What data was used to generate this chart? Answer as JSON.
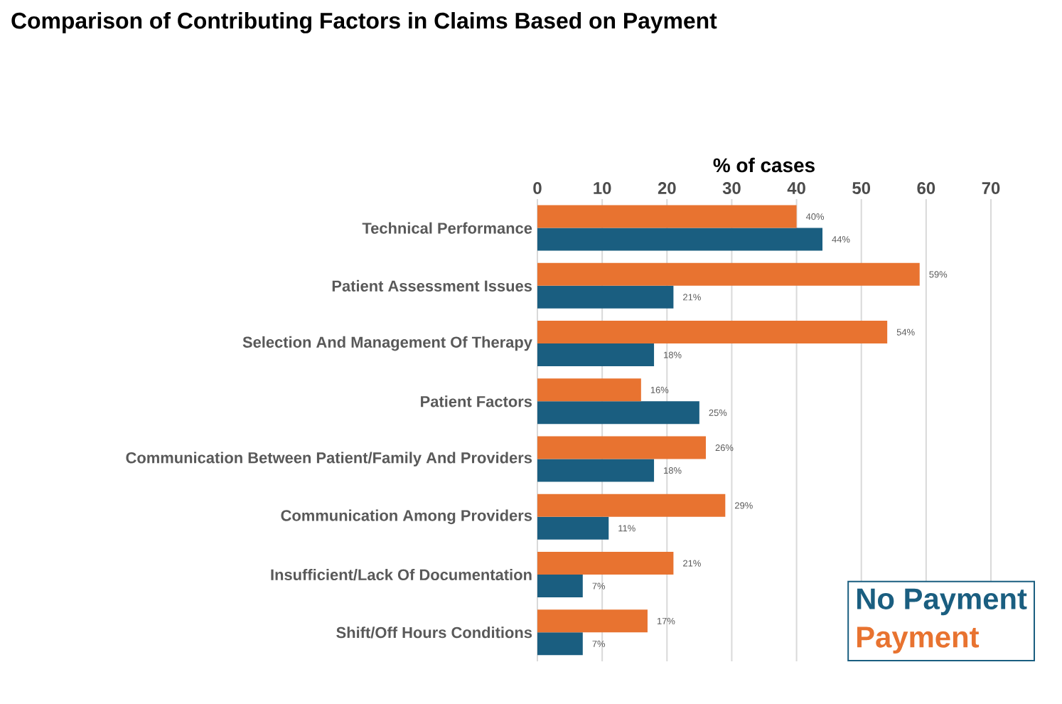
{
  "chart_data": {
    "type": "bar",
    "orientation": "horizontal",
    "title": "Comparison of Contributing Factors in Claims Based on Payment",
    "xlabel": "% of cases",
    "categories": [
      "Technical Performance",
      "Patient Assessment Issues",
      "Selection And Management Of Therapy",
      "Patient Factors",
      "Communication Between Patient/Family And Providers",
      "Communication Among Providers",
      "Insufficient/Lack Of Documentation",
      "Shift/Off Hours Conditions"
    ],
    "series": [
      {
        "name": "No Payment",
        "color": "#1a5e80",
        "values": [
          44,
          21,
          18,
          25,
          18,
          11,
          7,
          7
        ],
        "value_labels": [
          "44%",
          "21%",
          "18%",
          "25%",
          "18%",
          "11%",
          "7%",
          "7%"
        ]
      },
      {
        "name": "Payment",
        "color": "#e87330",
        "values": [
          40,
          59,
          54,
          16,
          26,
          29,
          21,
          17
        ],
        "value_labels": [
          "40%",
          "59%",
          "54%",
          "16%",
          "26%",
          "29%",
          "21%",
          "17%"
        ]
      }
    ],
    "xlim": [
      0,
      70
    ],
    "xticks": [
      0,
      10,
      20,
      30,
      40,
      50,
      60,
      70
    ],
    "grid": "x",
    "legend": "bottom right"
  }
}
